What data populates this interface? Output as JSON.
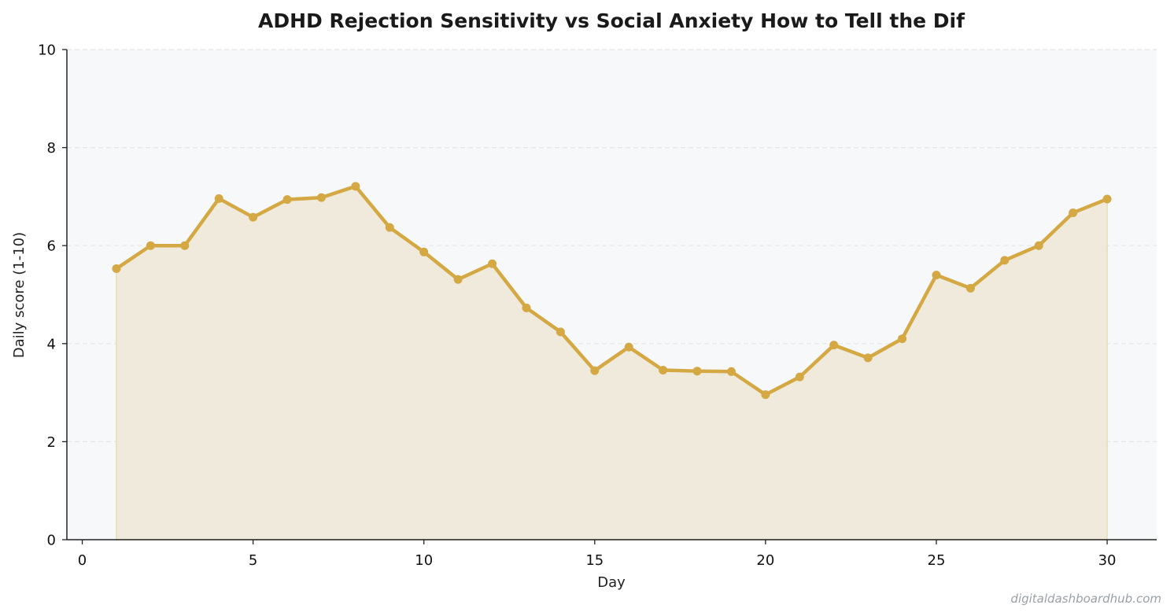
{
  "chart_data": {
    "type": "area",
    "title": "ADHD Rejection Sensitivity vs Social Anxiety  How to Tell the Dif",
    "xlabel": "Day",
    "ylabel": "Daily score (1-10)",
    "xlim": [
      -0.45,
      31.45
    ],
    "ylim": [
      0,
      10
    ],
    "xticks": [
      0,
      5,
      10,
      15,
      20,
      25,
      30
    ],
    "yticks": [
      0,
      2,
      4,
      6,
      8,
      10
    ],
    "grid": "y-dashed",
    "series": [
      {
        "x": [
          1,
          2,
          3,
          4,
          5,
          6,
          7,
          8,
          9,
          10,
          11,
          12,
          13,
          14,
          15,
          16,
          17,
          18,
          19,
          20,
          21,
          22,
          23,
          24,
          25,
          26,
          27,
          28,
          29,
          30
        ],
        "values": [
          5.53,
          6.0,
          6.0,
          6.96,
          6.58,
          6.94,
          6.98,
          7.21,
          6.37,
          5.87,
          5.31,
          5.63,
          4.73,
          4.24,
          3.45,
          3.93,
          3.46,
          3.44,
          3.43,
          2.96,
          3.32,
          3.97,
          3.71,
          4.1,
          5.4,
          5.13,
          5.7,
          6.0,
          6.67,
          6.95
        ]
      }
    ],
    "colors": {
      "line": "#d4a843",
      "fill": "#f0eadc",
      "plot_background": "#f7f8fa",
      "grid": "#e3e5e8",
      "axis": "#222222"
    }
  },
  "watermark": "digitaldashboardhub.com"
}
